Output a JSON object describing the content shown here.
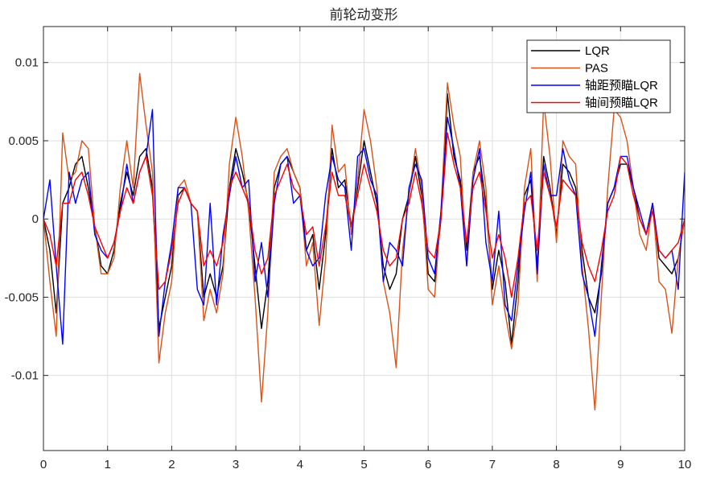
{
  "chart_data": {
    "type": "line",
    "title": "前轮动变形",
    "xlabel": "",
    "ylabel": "",
    "xlim": [
      0,
      10
    ],
    "ylim": [
      -0.0148,
      0.0123
    ],
    "xticks": [
      0,
      1,
      2,
      3,
      4,
      5,
      6,
      7,
      8,
      9,
      10
    ],
    "yticks": [
      -0.01,
      -0.005,
      0,
      0.005,
      0.01
    ],
    "xtick_labels": [
      "0",
      "1",
      "2",
      "3",
      "4",
      "5",
      "6",
      "7",
      "8",
      "9",
      "10"
    ],
    "ytick_labels": [
      "-0.01",
      "-0.005",
      "0",
      "0.005",
      "0.01"
    ],
    "grid": true,
    "legend_position": "top-right",
    "series": [
      {
        "name": "LQR",
        "color": "#000000",
        "x": [
          0,
          0.1,
          0.2,
          0.3,
          0.4,
          0.5,
          0.6,
          0.7,
          0.8,
          0.9,
          1.0,
          1.1,
          1.2,
          1.3,
          1.4,
          1.5,
          1.6,
          1.7,
          1.8,
          1.9,
          2.0,
          2.1,
          2.2,
          2.3,
          2.4,
          2.5,
          2.6,
          2.7,
          2.8,
          2.9,
          3.0,
          3.1,
          3.2,
          3.3,
          3.4,
          3.5,
          3.6,
          3.7,
          3.8,
          3.9,
          4.0,
          4.1,
          4.2,
          4.3,
          4.4,
          4.5,
          4.6,
          4.7,
          4.8,
          4.9,
          5.0,
          5.1,
          5.2,
          5.3,
          5.4,
          5.5,
          5.6,
          5.7,
          5.8,
          5.9,
          6.0,
          6.1,
          6.2,
          6.3,
          6.4,
          6.5,
          6.6,
          6.7,
          6.8,
          6.9,
          7.0,
          7.1,
          7.2,
          7.3,
          7.4,
          7.5,
          7.6,
          7.7,
          7.8,
          7.9,
          8.0,
          8.1,
          8.2,
          8.3,
          8.4,
          8.5,
          8.6,
          8.7,
          8.8,
          8.9,
          9.0,
          9.1,
          9.2,
          9.3,
          9.4,
          9.5,
          9.6,
          9.7,
          9.8,
          9.9,
          10.0
        ],
        "y": [
          0,
          -0.002,
          -0.006,
          0.001,
          0.002,
          0.0035,
          0.004,
          0.002,
          -0.0005,
          -0.003,
          -0.0035,
          -0.002,
          0.001,
          0.003,
          0.0015,
          0.004,
          0.0045,
          0.002,
          -0.007,
          -0.005,
          -0.003,
          0.0015,
          0.002,
          0.001,
          0.0005,
          -0.005,
          -0.0035,
          -0.005,
          -0.003,
          0.002,
          0.0045,
          0.003,
          0.001,
          -0.003,
          -0.007,
          -0.004,
          0.002,
          0.0035,
          0.004,
          0.003,
          0.002,
          -0.002,
          -0.001,
          -0.0045,
          -0.001,
          0.0045,
          0.002,
          0.0025,
          -0.0005,
          0.002,
          0.005,
          0.003,
          0.001,
          -0.003,
          -0.0045,
          -0.0035,
          0,
          0.0015,
          0.004,
          0.0015,
          -0.0035,
          -0.004,
          0,
          0.008,
          0.004,
          0.0025,
          -0.002,
          0.003,
          0.004,
          0.001,
          -0.0045,
          -0.002,
          -0.004,
          -0.008,
          -0.004,
          0.0015,
          0.0025,
          -0.003,
          0.004,
          0.002,
          -0.001,
          0.0035,
          0.003,
          0.002,
          -0.002,
          -0.005,
          -0.006,
          -0.0035,
          0.001,
          0.002,
          0.0035,
          0.0035,
          0.002,
          0,
          -0.001,
          0.001,
          -0.0025,
          -0.003,
          -0.0035,
          -0.0025,
          0
        ]
      },
      {
        "name": "PAS",
        "color": "#D95319",
        "x": [
          0,
          0.1,
          0.2,
          0.3,
          0.4,
          0.5,
          0.6,
          0.7,
          0.8,
          0.9,
          1.0,
          1.1,
          1.2,
          1.3,
          1.4,
          1.5,
          1.6,
          1.7,
          1.8,
          1.9,
          2.0,
          2.1,
          2.2,
          2.3,
          2.4,
          2.5,
          2.6,
          2.7,
          2.8,
          2.9,
          3.0,
          3.1,
          3.2,
          3.3,
          3.4,
          3.5,
          3.6,
          3.7,
          3.8,
          3.9,
          4.0,
          4.1,
          4.2,
          4.3,
          4.4,
          4.5,
          4.6,
          4.7,
          4.8,
          4.9,
          5.0,
          5.1,
          5.2,
          5.3,
          5.4,
          5.5,
          5.6,
          5.7,
          5.8,
          5.9,
          6.0,
          6.1,
          6.2,
          6.3,
          6.4,
          6.5,
          6.6,
          6.7,
          6.8,
          6.9,
          7.0,
          7.1,
          7.2,
          7.3,
          7.4,
          7.5,
          7.6,
          7.7,
          7.8,
          7.9,
          8.0,
          8.1,
          8.2,
          8.3,
          8.4,
          8.5,
          8.6,
          8.7,
          8.8,
          8.9,
          9.0,
          9.1,
          9.2,
          9.3,
          9.4,
          9.5,
          9.6,
          9.7,
          9.8,
          9.9,
          10.0
        ],
        "y": [
          0,
          -0.004,
          -0.0075,
          0.0055,
          0.0025,
          0.003,
          0.005,
          0.0045,
          -0.0005,
          -0.0035,
          -0.0035,
          -0.0025,
          0.002,
          0.005,
          0.002,
          0.0093,
          0.006,
          0.003,
          -0.0092,
          -0.006,
          -0.004,
          0.002,
          0.0025,
          0.001,
          0.0005,
          -0.0065,
          -0.0045,
          -0.006,
          -0.0035,
          0.0035,
          0.0065,
          0.004,
          0.0005,
          -0.005,
          -0.0117,
          -0.006,
          0.003,
          0.004,
          0.0045,
          0.003,
          0.002,
          -0.003,
          -0.0015,
          -0.0068,
          -0.0025,
          0.006,
          0.003,
          0.0035,
          -0.001,
          0.0025,
          0.007,
          0.005,
          0.002,
          -0.004,
          -0.006,
          -0.0095,
          -0.002,
          0.0015,
          0.0045,
          0.002,
          -0.0045,
          -0.005,
          0.0005,
          0.0087,
          0.006,
          0.004,
          -0.003,
          0.003,
          0.005,
          0.002,
          -0.0055,
          -0.003,
          -0.006,
          -0.0083,
          -0.0055,
          0.002,
          0.0045,
          -0.004,
          0.0075,
          0.004,
          -0.0015,
          0.005,
          0.004,
          0.0035,
          -0.003,
          -0.007,
          -0.0122,
          -0.005,
          0.002,
          0.007,
          0.0065,
          0.005,
          0.002,
          -0.001,
          -0.002,
          0.001,
          -0.004,
          -0.0045,
          -0.0073,
          -0.0025,
          0
        ]
      },
      {
        "name": "轴距预瞄LQR",
        "color": "#0000FF",
        "x": [
          0,
          0.1,
          0.2,
          0.3,
          0.4,
          0.5,
          0.6,
          0.7,
          0.8,
          0.9,
          1.0,
          1.1,
          1.2,
          1.3,
          1.4,
          1.5,
          1.6,
          1.7,
          1.8,
          1.9,
          2.0,
          2.1,
          2.2,
          2.3,
          2.4,
          2.5,
          2.6,
          2.7,
          2.8,
          2.9,
          3.0,
          3.1,
          3.2,
          3.3,
          3.4,
          3.5,
          3.6,
          3.7,
          3.8,
          3.9,
          4.0,
          4.1,
          4.2,
          4.3,
          4.4,
          4.5,
          4.6,
          4.7,
          4.8,
          4.9,
          5.0,
          5.1,
          5.2,
          5.3,
          5.4,
          5.5,
          5.6,
          5.7,
          5.8,
          5.9,
          6.0,
          6.1,
          6.2,
          6.3,
          6.4,
          6.5,
          6.6,
          6.7,
          6.8,
          6.9,
          7.0,
          7.1,
          7.2,
          7.3,
          7.4,
          7.5,
          7.6,
          7.7,
          7.8,
          7.9,
          8.0,
          8.1,
          8.2,
          8.3,
          8.4,
          8.5,
          8.6,
          8.7,
          8.8,
          8.9,
          9.0,
          9.1,
          9.2,
          9.3,
          9.4,
          9.5,
          9.6,
          9.7,
          9.8,
          9.9,
          10.0
        ],
        "y": [
          0,
          0.0025,
          -0.003,
          -0.008,
          0.003,
          0.001,
          0.0025,
          0.003,
          -0.001,
          -0.002,
          -0.0025,
          -0.0015,
          0.0005,
          0.0035,
          0.001,
          0.003,
          0.004,
          0.007,
          -0.0075,
          -0.004,
          -0.0015,
          0.002,
          0.002,
          0.001,
          -0.0045,
          -0.0055,
          0.001,
          -0.0055,
          -0.001,
          0.0015,
          0.004,
          0.002,
          0.0025,
          -0.004,
          -0.0015,
          -0.005,
          0.001,
          0.0035,
          0.004,
          0.001,
          0.0015,
          -0.002,
          -0.003,
          -0.0025,
          0.0015,
          0.004,
          0.0025,
          0.002,
          -0.002,
          0.004,
          0.0045,
          0.0025,
          0.0015,
          -0.004,
          -0.0015,
          -0.002,
          -0.003,
          0.002,
          0.0035,
          0.0025,
          -0.0025,
          -0.0035,
          0.0005,
          0.0065,
          0.0045,
          0.002,
          -0.003,
          0.0025,
          0.0045,
          -0.0015,
          -0.004,
          0.0005,
          -0.0055,
          -0.0065,
          -0.003,
          0.0005,
          0.003,
          -0.0035,
          0.0035,
          0.0015,
          0.0015,
          0.0045,
          0.0025,
          0.0015,
          -0.0035,
          -0.005,
          -0.0075,
          -0.003,
          0.001,
          0.002,
          0.004,
          0.004,
          0.002,
          0.0005,
          -0.001,
          0.001,
          -0.002,
          -0.0025,
          -0.002,
          -0.0045,
          0.003
        ]
      },
      {
        "name": "轴间预瞄LQR",
        "color": "#FF0000",
        "x": [
          0,
          0.1,
          0.2,
          0.3,
          0.4,
          0.5,
          0.6,
          0.7,
          0.8,
          0.9,
          1.0,
          1.1,
          1.2,
          1.3,
          1.4,
          1.5,
          1.6,
          1.7,
          1.8,
          1.9,
          2.0,
          2.1,
          2.2,
          2.3,
          2.4,
          2.5,
          2.6,
          2.7,
          2.8,
          2.9,
          3.0,
          3.1,
          3.2,
          3.3,
          3.4,
          3.5,
          3.6,
          3.7,
          3.8,
          3.9,
          4.0,
          4.1,
          4.2,
          4.3,
          4.4,
          4.5,
          4.6,
          4.7,
          4.8,
          4.9,
          5.0,
          5.1,
          5.2,
          5.3,
          5.4,
          5.5,
          5.6,
          5.7,
          5.8,
          5.9,
          6.0,
          6.1,
          6.2,
          6.3,
          6.4,
          6.5,
          6.6,
          6.7,
          6.8,
          6.9,
          7.0,
          7.1,
          7.2,
          7.3,
          7.4,
          7.5,
          7.6,
          7.7,
          7.8,
          7.9,
          8.0,
          8.1,
          8.2,
          8.3,
          8.4,
          8.5,
          8.6,
          8.7,
          8.8,
          8.9,
          9.0,
          9.1,
          9.2,
          9.3,
          9.4,
          9.5,
          9.6,
          9.7,
          9.8,
          9.9,
          10.0
        ],
        "y": [
          0,
          -0.001,
          -0.003,
          0.001,
          0.001,
          0.0025,
          0.003,
          0.0015,
          -0.0005,
          -0.0015,
          -0.0025,
          -0.0015,
          0.0005,
          0.002,
          0.001,
          0.003,
          0.004,
          0.0015,
          -0.0045,
          -0.004,
          -0.002,
          0.001,
          0.002,
          0.001,
          0.0005,
          -0.003,
          -0.002,
          -0.003,
          -0.0015,
          0.002,
          0.003,
          0.002,
          0.001,
          -0.002,
          -0.0035,
          -0.0025,
          0.0015,
          0.0025,
          0.0035,
          0.002,
          0.0015,
          -0.001,
          -0.0005,
          -0.003,
          -0.0005,
          0.003,
          0.0015,
          0.0015,
          -0.0005,
          0.0015,
          0.0035,
          0.002,
          0.0005,
          -0.002,
          -0.003,
          -0.0025,
          0,
          0.001,
          0.003,
          0.001,
          -0.002,
          -0.0025,
          0,
          0.0055,
          0.0035,
          0.002,
          -0.0015,
          0.002,
          0.003,
          0.0005,
          -0.0025,
          -0.001,
          -0.0025,
          -0.005,
          -0.0025,
          0.001,
          0.0015,
          -0.002,
          0.003,
          0.0015,
          -0.0005,
          0.0025,
          0.002,
          0.0015,
          -0.0015,
          -0.003,
          -0.004,
          -0.002,
          0.0005,
          0.0015,
          0.004,
          0.0035,
          0.0015,
          0,
          -0.001,
          0.0005,
          -0.002,
          -0.0025,
          -0.002,
          -0.0015,
          0
        ]
      }
    ]
  }
}
